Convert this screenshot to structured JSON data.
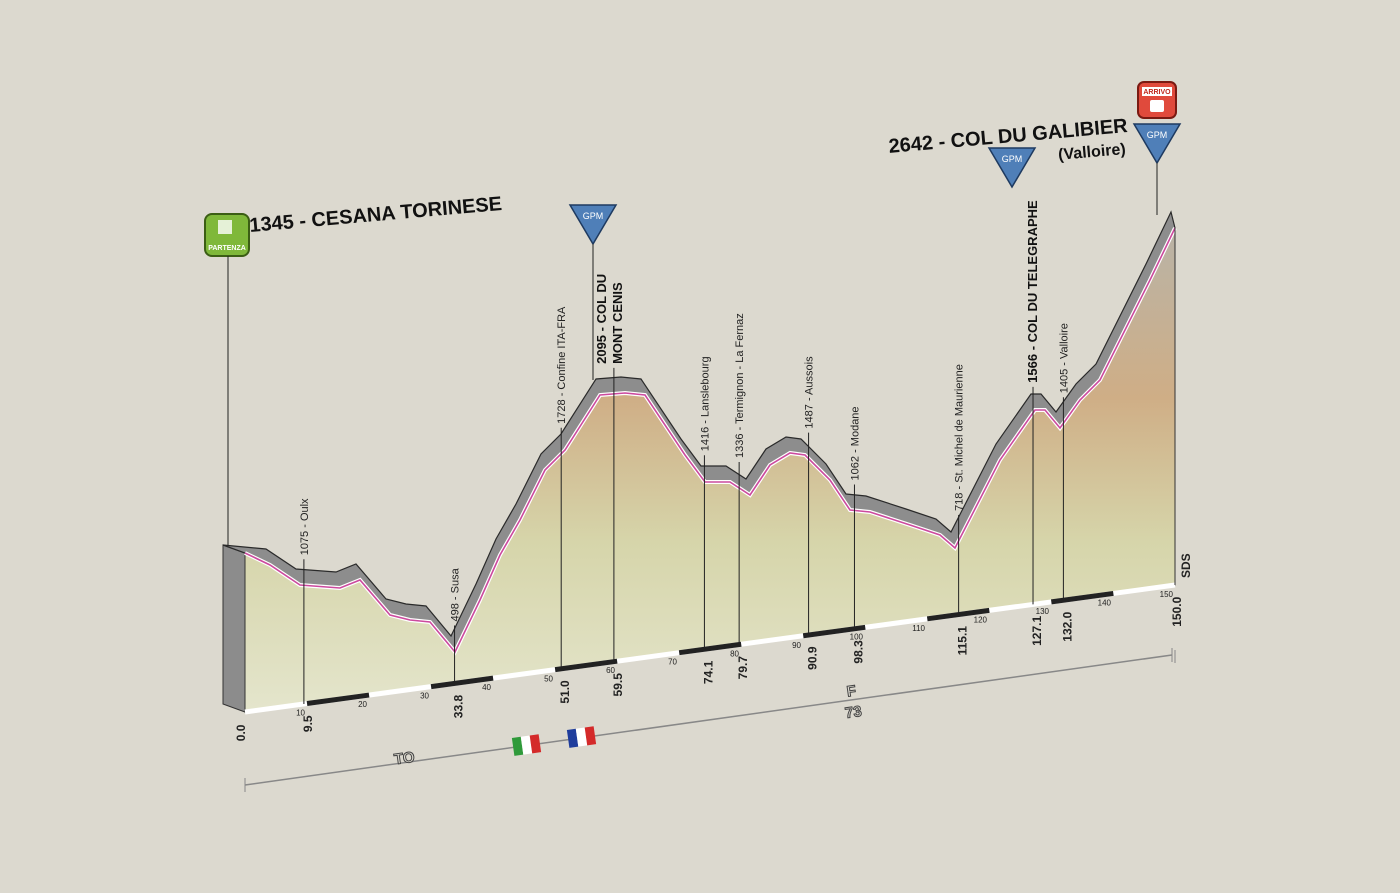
{
  "start": {
    "badge": "PARTENZA",
    "label": "1345 - CESANA TORINESE",
    "km": "0.0"
  },
  "finish": {
    "badge": "ARRIVO",
    "label": "2642 - COL DU GALIBIER",
    "sublabel": "(Valloire)",
    "km": "150.0"
  },
  "gpm_badges": [
    "GPM",
    "GPM",
    "GPM"
  ],
  "waypoints": [
    {
      "label": "1075 - Oulx",
      "km": "9.5"
    },
    {
      "label": "498 - Susa",
      "km": "33.8"
    },
    {
      "label": "1728 - Confine ITA-FRA",
      "km": "51.0"
    },
    {
      "label": "2095 - COL DU",
      "label2": "MONT CENIS",
      "km": "59.5"
    },
    {
      "label": "1416 - Lanslebourg",
      "km": "74.1"
    },
    {
      "label": "1336 - Termignon - La Fernaz",
      "km": "79.7"
    },
    {
      "label": "1487 - Aussois",
      "km": "90.9"
    },
    {
      "label": "1062 - Modane",
      "km": "98.3"
    },
    {
      "label": "718 - St. Michel de Maurienne",
      "km": "115.1"
    },
    {
      "label": "1566 - COL DU TELEGRAPHE",
      "km": "127.1"
    },
    {
      "label": "1405 - Valloire",
      "km": "132.0"
    }
  ],
  "distance_ticks": [
    10,
    20,
    30,
    40,
    50,
    60,
    70,
    80,
    90,
    100,
    110,
    120,
    130,
    140,
    150
  ],
  "signature": "SDS",
  "regions": {
    "italy": "TO",
    "france": "F",
    "france_code": "73"
  }
}
